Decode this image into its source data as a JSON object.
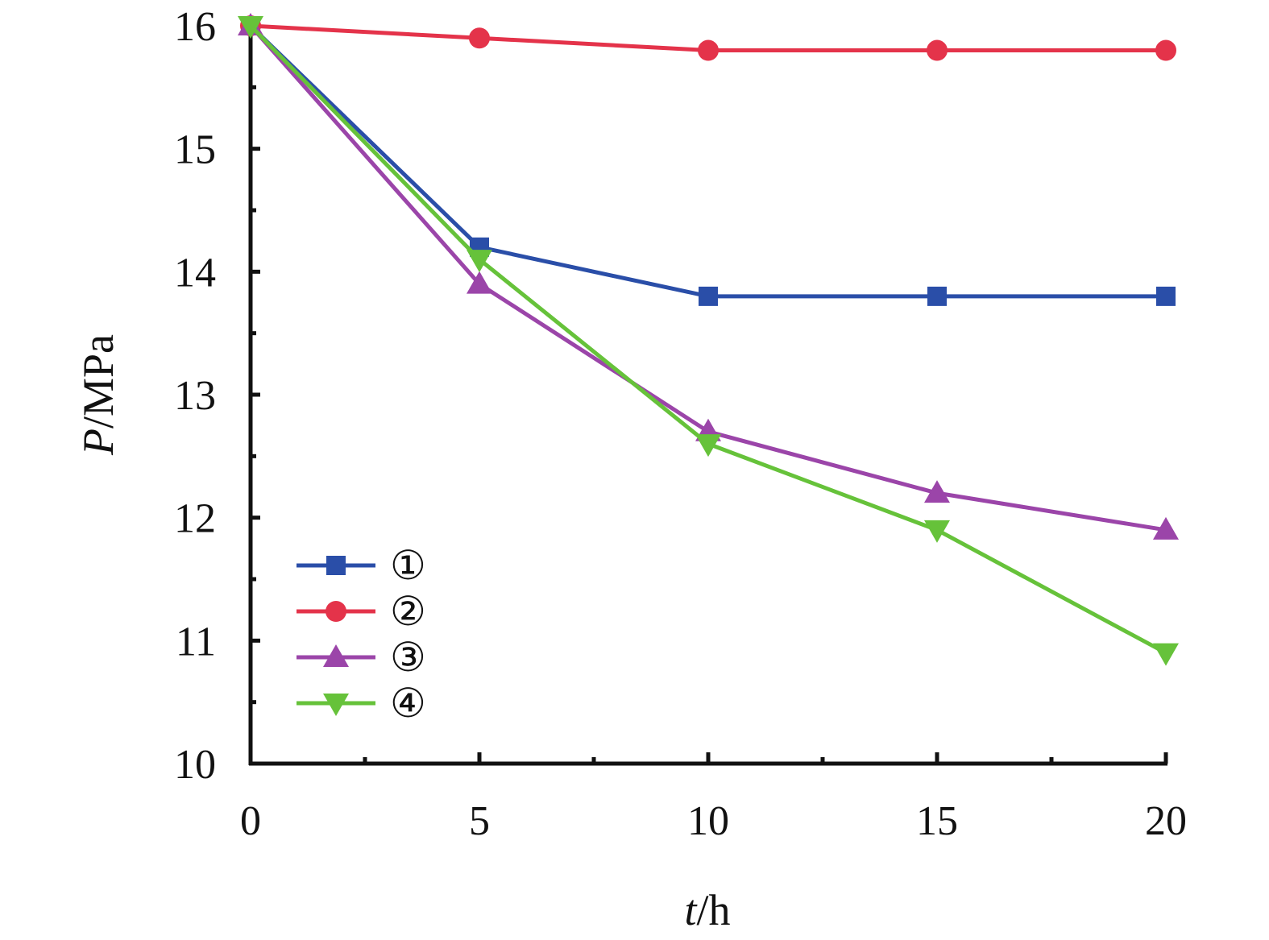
{
  "chart_data": {
    "type": "line",
    "title": "",
    "x_label": {
      "var": "t",
      "unit": "/h"
    },
    "y_label": {
      "var": "P",
      "unit": "/MPa"
    },
    "xlim": [
      0,
      20
    ],
    "ylim": [
      10,
      16
    ],
    "x_ticks": [
      0,
      5,
      10,
      15,
      20
    ],
    "y_ticks": [
      10,
      11,
      12,
      13,
      14,
      15,
      16
    ],
    "grid": false,
    "legend_position": "lower-left",
    "x": [
      0,
      5,
      10,
      15,
      20
    ],
    "series": [
      {
        "name": "①",
        "marker": "square",
        "color": "#2a4ea8",
        "values": [
          16.0,
          14.2,
          13.8,
          13.8,
          13.8
        ]
      },
      {
        "name": "②",
        "marker": "circle",
        "color": "#e4334a",
        "values": [
          16.0,
          15.9,
          15.8,
          15.8,
          15.8
        ]
      },
      {
        "name": "③",
        "marker": "triangle-up",
        "color": "#9b45a9",
        "values": [
          16.0,
          13.9,
          12.7,
          12.2,
          11.9
        ]
      },
      {
        "name": "④",
        "marker": "triangle-down",
        "color": "#66c23a",
        "values": [
          16.0,
          14.1,
          12.6,
          11.9,
          10.9
        ]
      }
    ]
  }
}
